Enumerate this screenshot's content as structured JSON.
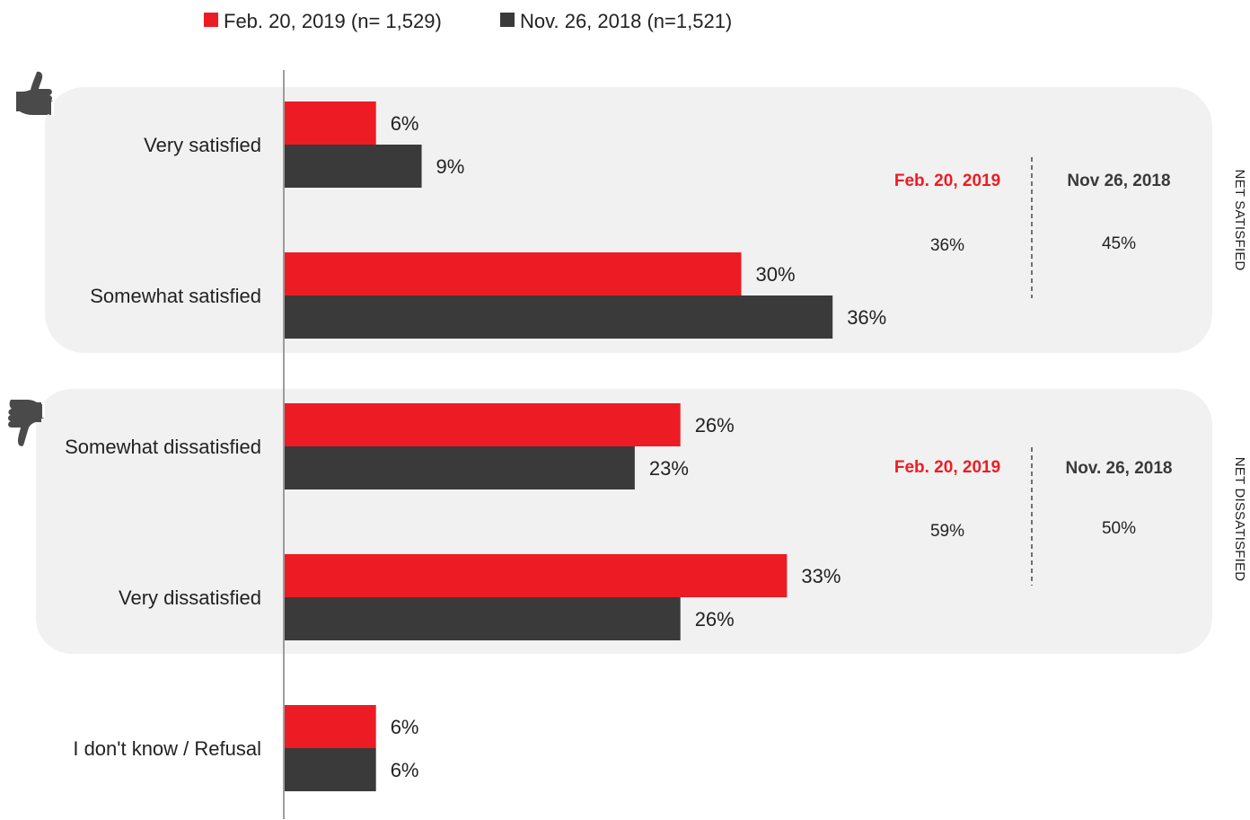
{
  "chart_data": {
    "type": "bar",
    "orientation": "horizontal",
    "categories": [
      "Very satisfied",
      "Somewhat satisfied",
      "Somewhat dissatisfied",
      "Very dissatisfied",
      "I don't know / Refusal"
    ],
    "series": [
      {
        "name": "Feb. 20, 2019 (n= 1,529)",
        "color": "#ED1C24",
        "values": [
          6,
          30,
          26,
          33,
          6
        ],
        "labels": [
          "6%",
          "30%",
          "26%",
          "33%",
          "6%"
        ]
      },
      {
        "name": "Nov. 26, 2018 (n=1,521)",
        "color": "#3A3A3A",
        "values": [
          9,
          36,
          23,
          26,
          6
        ],
        "labels": [
          "9%",
          "36%",
          "23%",
          "26%",
          "6%"
        ]
      }
    ],
    "xlim": [
      0,
      100
    ],
    "unit": "%",
    "legend_position": "top",
    "grid": false
  },
  "groups": [
    {
      "side_label": "NET SATISFIED",
      "icon": "thumbs-up-icon",
      "head_a": "Feb. 20, 2019",
      "head_b": "Nov 26, 2018",
      "value_a": "36%",
      "value_b": "45%"
    },
    {
      "side_label": "NET DISSATISFIED",
      "icon": "thumbs-down-icon",
      "head_a": "Feb. 20, 2019",
      "head_b": "Nov. 26, 2018",
      "value_a": "59%",
      "value_b": "50%"
    }
  ],
  "colors": {
    "accent": "#ED1C24",
    "dark": "#3A3A3A",
    "panel": "#F1F1F1",
    "icon": "#4A4A4A"
  }
}
